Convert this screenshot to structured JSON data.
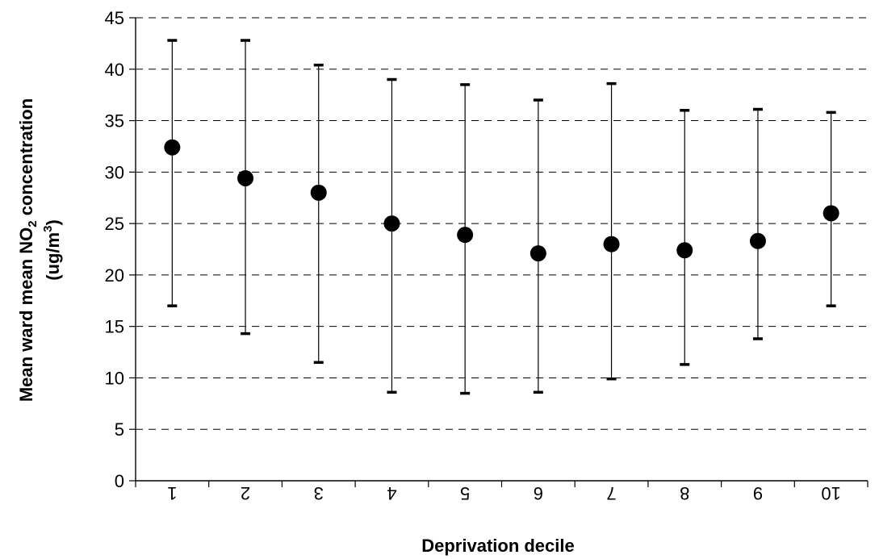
{
  "chart_data": {
    "type": "scatter",
    "title": "",
    "xlabel": "Deprivation decile",
    "ylabel": {
      "line1_before": "Mean ward mean NO",
      "line1_sub": "2",
      "line1_after": " concentration",
      "line2_before": "(ug/m",
      "line2_sup": "3",
      "line2_after": ")"
    },
    "ylim": [
      0,
      45
    ],
    "yticks": [
      "0",
      "5",
      "10",
      "15",
      "20",
      "25",
      "30",
      "35",
      "40",
      "45"
    ],
    "grid": "horizontal dashed",
    "categories": [
      "1",
      "2",
      "3",
      "4",
      "5",
      "6",
      "7",
      "8",
      "9",
      "10"
    ],
    "category_labels_orientation": "rotated 180 degrees",
    "series": [
      {
        "values": [
          32.4,
          29.4,
          28.0,
          25.0,
          23.9,
          22.1,
          23.0,
          22.4,
          23.3,
          26.0
        ],
        "error_low": [
          17.0,
          14.3,
          11.5,
          8.6,
          8.5,
          8.6,
          9.9,
          11.3,
          13.8,
          17.0
        ],
        "error_high": [
          42.8,
          42.8,
          40.4,
          39.0,
          38.5,
          37.0,
          38.6,
          36.0,
          36.1,
          35.8
        ],
        "color": "#000000"
      }
    ]
  }
}
